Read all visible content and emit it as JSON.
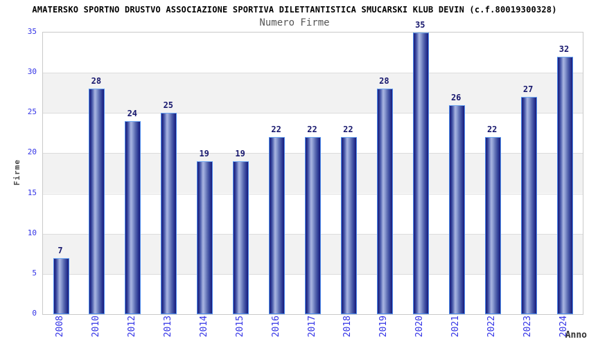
{
  "header": {
    "title": "AMATERSKO SPORTNO DRUSTVO ASSOCIAZIONE SPORTIVA DILETTANTISTICA SMUCARSKI KLUB DEVIN (c.f.80019300328)",
    "subtitle": "Numero Firme"
  },
  "chart_data": {
    "type": "bar",
    "title": "AMATERSKO SPORTNO DRUSTVO ASSOCIAZIONE SPORTIVA DILETTANTISTICA SMUCARSKI KLUB DEVIN (c.f.80019300328)",
    "subtitle": "Numero Firme",
    "xlabel": "Anno",
    "ylabel": "Firme",
    "categories": [
      "2008",
      "2010",
      "2012",
      "2013",
      "2014",
      "2015",
      "2016",
      "2017",
      "2018",
      "2019",
      "2020",
      "2021",
      "2022",
      "2023",
      "2024"
    ],
    "values": [
      7,
      28,
      24,
      25,
      19,
      19,
      22,
      22,
      22,
      28,
      35,
      26,
      22,
      27,
      32
    ],
    "ylim": [
      0,
      35
    ],
    "yticks": [
      0,
      5,
      10,
      15,
      20,
      25,
      30,
      35
    ],
    "grid": "horizontal gridlines with alternating gray bands",
    "legend": "none",
    "colors": {
      "bar_edge": "#1c1c7a",
      "bar_highlight": "#aab6e2",
      "bar_border": "#4f8ff0",
      "tick_label": "#3232e6",
      "value_label": "#18186e",
      "axis_title": "#4a4a4a",
      "band_gray": "#f2f2f2",
      "gridline": "#dcdcdc",
      "plot_border": "#c9c9c9",
      "title": "#000000"
    }
  }
}
